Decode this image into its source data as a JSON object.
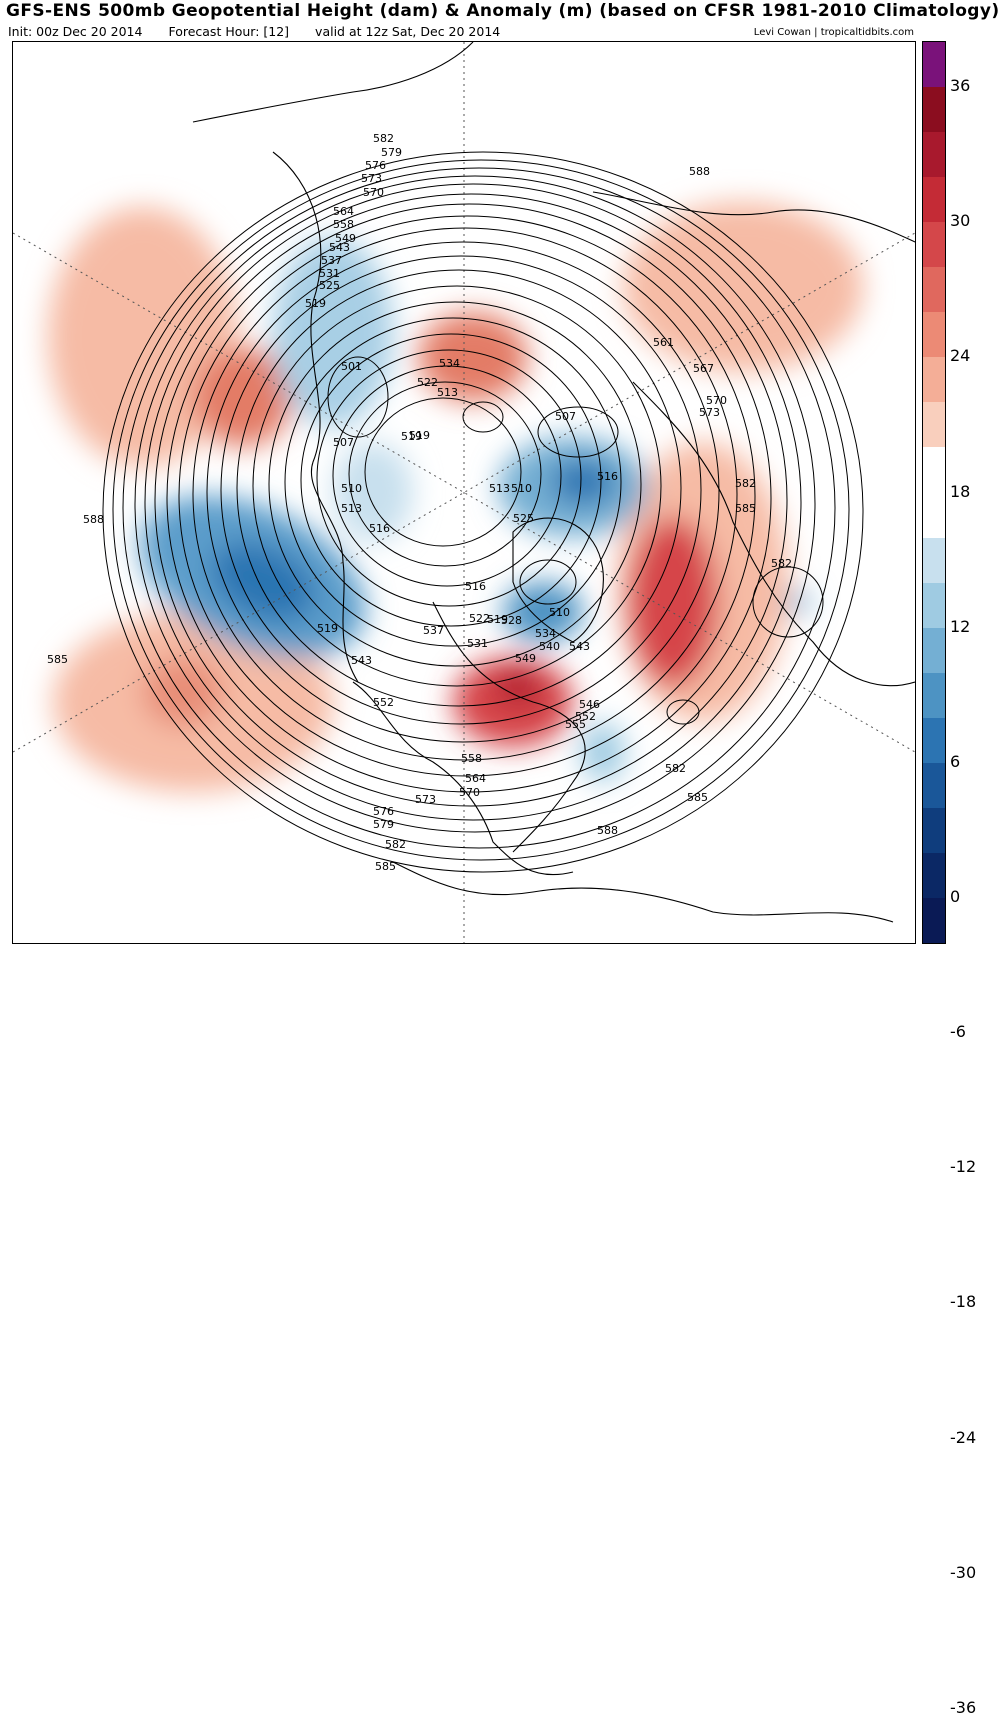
{
  "header": {
    "title": "GFS-ENS 500mb Geopotential Height (dam) & Anomaly (m) (based on CFSR 1981-2010 Climatology)",
    "init": "Init: 00z Dec 20 2014",
    "forecast_hour": "Forecast Hour: [12]",
    "valid": "valid at 12z Sat, Dec 20 2014",
    "credit": "Levi Cowan | tropicaltidbits.com"
  },
  "colorbar": {
    "ticks": [
      "36",
      "30",
      "24",
      "18",
      "12",
      "6",
      "0",
      "-6",
      "-12",
      "-18",
      "-24",
      "-30",
      "-36"
    ],
    "colors": [
      "#7a127a",
      "#8b0d1f",
      "#a8192d",
      "#c42b36",
      "#d4474a",
      "#e0685e",
      "#ec8a75",
      "#f4ae97",
      "#f9cfbd",
      "#ffffff",
      "#ffffff",
      "#c8e0ee",
      "#9fcbe2",
      "#74afd3",
      "#4d93c3",
      "#2c74b2",
      "#1a5799",
      "#0f3d7d",
      "#0b2865",
      "#0a1a55"
    ]
  },
  "map": {
    "contour_labels": [
      "588",
      "582",
      "579",
      "576",
      "573",
      "570",
      "564",
      "558",
      "549",
      "543",
      "537",
      "531",
      "525",
      "519",
      "501",
      "507",
      "510",
      "513",
      "516",
      "519",
      "522",
      "534",
      "513",
      "519",
      "507",
      "516",
      "513",
      "510",
      "561",
      "567",
      "570",
      "573",
      "582",
      "585",
      "582",
      "519",
      "516",
      "522",
      "528",
      "534",
      "540",
      "543",
      "549",
      "531",
      "537",
      "546",
      "552",
      "555",
      "543",
      "552",
      "519",
      "585",
      "588",
      "558",
      "564",
      "570",
      "573",
      "576",
      "579",
      "582",
      "585",
      "588",
      "582",
      "585",
      "510",
      "525"
    ],
    "colors": {
      "positive": "#d6454a",
      "negative": "#2b6fb0",
      "land": "#000000"
    }
  }
}
